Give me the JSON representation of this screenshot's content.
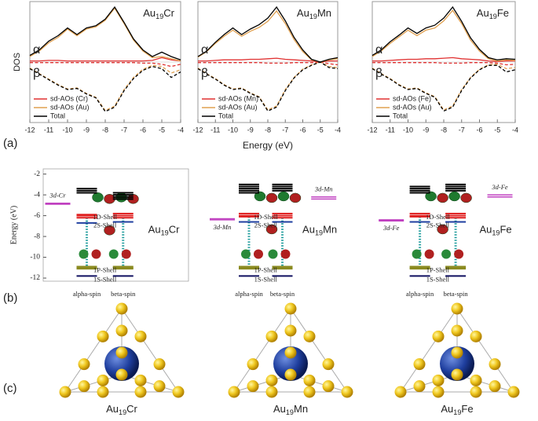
{
  "panel_labels": [
    "(a)",
    "(b)",
    "(c)"
  ],
  "chart_data": [
    {
      "type": "dos",
      "title": {
        "text": "Au",
        "subscript": "19",
        "suffix": "Cr"
      },
      "ylabel": "DOS",
      "alpha_label": "α",
      "beta_label": "β",
      "x": [
        -12,
        -11.5,
        -11,
        -10.5,
        -10,
        -9.5,
        -9,
        -8.5,
        -8,
        -7.5,
        -7,
        -6.5,
        -6,
        -5.5,
        -5,
        -4.5,
        -4
      ],
      "xlim": [
        -12,
        -4
      ],
      "xticks": [
        -12,
        -11,
        -10,
        -9,
        -8,
        -7,
        -6,
        -5,
        -4
      ],
      "ylim": [
        -1.1,
        1.1
      ],
      "legend": "lower left",
      "series": [
        {
          "name": "sd-AOs (Cr)",
          "color": "#e03030",
          "values": [
            0.02,
            0.02,
            0.03,
            0.03,
            0.02,
            0.02,
            0.02,
            0.02,
            0.02,
            0.02,
            0.02,
            0.02,
            0.02,
            0.03,
            0.08,
            0.04,
            0.02
          ],
          "beta": [
            -0.01,
            -0.01,
            -0.01,
            -0.01,
            -0.01,
            -0.01,
            -0.01,
            -0.01,
            -0.01,
            -0.01,
            -0.01,
            -0.01,
            -0.02,
            -0.02,
            -0.04,
            -0.08,
            -0.04
          ]
        },
        {
          "name": "sd-AOs (Au)",
          "color": "#e0a050",
          "values": [
            0.1,
            0.2,
            0.35,
            0.45,
            0.6,
            0.48,
            0.6,
            0.64,
            0.76,
            0.98,
            0.7,
            0.4,
            0.2,
            0.08,
            0.1,
            0.06,
            0.02
          ],
          "beta": [
            -0.11,
            -0.21,
            -0.31,
            -0.41,
            -0.49,
            -0.47,
            -0.57,
            -0.64,
            -0.88,
            -0.8,
            -0.5,
            -0.28,
            -0.13,
            -0.06,
            -0.08,
            -0.2,
            -0.14
          ]
        },
        {
          "name": "Total",
          "color": "#000000",
          "values": [
            0.12,
            0.22,
            0.38,
            0.48,
            0.62,
            0.5,
            0.62,
            0.66,
            0.78,
            1.0,
            0.72,
            0.42,
            0.22,
            0.1,
            0.18,
            0.1,
            0.04
          ],
          "beta": [
            -0.12,
            -0.22,
            -0.32,
            -0.42,
            -0.5,
            -0.48,
            -0.58,
            -0.65,
            -0.9,
            -0.82,
            -0.52,
            -0.3,
            -0.15,
            -0.08,
            -0.12,
            -0.28,
            -0.18
          ]
        }
      ]
    },
    {
      "type": "dos",
      "title": {
        "text": "Au",
        "subscript": "19",
        "suffix": "Mn"
      },
      "xlabel": "Energy (eV)",
      "alpha_label": "α",
      "beta_label": "β",
      "x": [
        -12,
        -11.5,
        -11,
        -10.5,
        -10,
        -9.5,
        -9,
        -8.5,
        -8,
        -7.5,
        -7,
        -6.5,
        -6,
        -5.5,
        -5,
        -4.5,
        -4
      ],
      "xlim": [
        -12,
        -4
      ],
      "xticks": [
        -12,
        -11,
        -10,
        -9,
        -8,
        -7,
        -6,
        -5,
        -4
      ],
      "ylim": [
        -1.1,
        1.1
      ],
      "legend": "lower left",
      "series": [
        {
          "name": "sd-AOs (Mn)",
          "color": "#e03030",
          "values": [
            0.02,
            0.02,
            0.03,
            0.04,
            0.04,
            0.04,
            0.05,
            0.05,
            0.06,
            0.07,
            0.05,
            0.04,
            0.03,
            0.02,
            0.0,
            0.02,
            0.02
          ],
          "beta": [
            -0.01,
            -0.01,
            -0.01,
            -0.01,
            -0.01,
            -0.01,
            -0.01,
            -0.01,
            -0.02,
            -0.02,
            -0.02,
            -0.01,
            -0.01,
            -0.01,
            -0.0,
            -0.03,
            -0.05
          ]
        },
        {
          "name": "sd-AOs (Au)",
          "color": "#e0a050",
          "values": [
            0.09,
            0.19,
            0.34,
            0.47,
            0.58,
            0.47,
            0.56,
            0.63,
            0.74,
            0.93,
            0.7,
            0.41,
            0.19,
            0.04,
            0.0,
            0.04,
            0.06
          ],
          "beta": [
            -0.11,
            -0.21,
            -0.3,
            -0.41,
            -0.49,
            -0.47,
            -0.56,
            -0.63,
            -0.87,
            -0.8,
            -0.5,
            -0.28,
            -0.13,
            -0.05,
            -0.0,
            -0.08,
            -0.1
          ]
        },
        {
          "name": "Total",
          "color": "#000000",
          "values": [
            0.1,
            0.2,
            0.36,
            0.5,
            0.62,
            0.5,
            0.6,
            0.68,
            0.8,
            1.0,
            0.75,
            0.45,
            0.22,
            0.05,
            0.0,
            0.05,
            0.08
          ],
          "beta": [
            -0.12,
            -0.22,
            -0.31,
            -0.42,
            -0.5,
            -0.48,
            -0.57,
            -0.64,
            -0.89,
            -0.82,
            -0.52,
            -0.29,
            -0.14,
            -0.06,
            -0.0,
            -0.1,
            -0.12
          ]
        }
      ]
    },
    {
      "type": "dos",
      "title": {
        "text": "Au",
        "subscript": "19",
        "suffix": "Fe"
      },
      "alpha_label": "α",
      "beta_label": "β",
      "x": [
        -12,
        -11.5,
        -11,
        -10.5,
        -10,
        -9.5,
        -9,
        -8.5,
        -8,
        -7.5,
        -7,
        -6.5,
        -6,
        -5.5,
        -5,
        -4.5,
        -4
      ],
      "xlim": [
        -12,
        -4
      ],
      "xticks": [
        -12,
        -11,
        -10,
        -9,
        -8,
        -7,
        -6,
        -5,
        -4
      ],
      "ylim": [
        -1.1,
        1.1
      ],
      "legend": "lower left",
      "series": [
        {
          "name": "sd-AOs (Fe)",
          "color": "#e03030",
          "values": [
            0.02,
            0.02,
            0.03,
            0.04,
            0.05,
            0.05,
            0.06,
            0.06,
            0.07,
            0.08,
            0.06,
            0.05,
            0.04,
            0.02,
            0.01,
            0.02,
            0.02
          ],
          "beta": [
            -0.01,
            -0.01,
            -0.01,
            -0.01,
            -0.01,
            -0.01,
            -0.01,
            -0.01,
            -0.02,
            -0.02,
            -0.02,
            -0.01,
            -0.01,
            -0.01,
            -0.02,
            -0.05,
            -0.04
          ]
        },
        {
          "name": "sd-AOs (Au)",
          "color": "#e0a050",
          "values": [
            0.1,
            0.2,
            0.34,
            0.46,
            0.58,
            0.48,
            0.58,
            0.62,
            0.75,
            0.94,
            0.7,
            0.4,
            0.2,
            0.06,
            0.02,
            0.04,
            0.03
          ],
          "beta": [
            -0.11,
            -0.21,
            -0.3,
            -0.41,
            -0.49,
            -0.47,
            -0.56,
            -0.63,
            -0.87,
            -0.8,
            -0.5,
            -0.28,
            -0.13,
            -0.05,
            -0.04,
            -0.12,
            -0.1
          ]
        },
        {
          "name": "Total",
          "color": "#000000",
          "values": [
            0.12,
            0.22,
            0.37,
            0.49,
            0.62,
            0.52,
            0.62,
            0.67,
            0.8,
            1.0,
            0.74,
            0.44,
            0.23,
            0.08,
            0.04,
            0.06,
            0.05
          ],
          "beta": [
            -0.12,
            -0.22,
            -0.31,
            -0.42,
            -0.5,
            -0.48,
            -0.57,
            -0.64,
            -0.89,
            -0.82,
            -0.52,
            -0.29,
            -0.14,
            -0.06,
            -0.06,
            -0.18,
            -0.14
          ]
        }
      ]
    },
    {
      "type": "levels",
      "title": {
        "text": "Au",
        "subscript": "19",
        "suffix": "Cr"
      },
      "ylabel": "Energy (eV)",
      "ylim": [
        -12.3,
        -1.5
      ],
      "yticks": [
        -2,
        -4,
        -6,
        -8,
        -10,
        -12
      ],
      "alpha_label": "alpha-spin",
      "beta_label": "beta-spin",
      "groups": [
        {
          "color": "#000000",
          "alpha": [
            -3.4,
            -3.6,
            -3.8
          ],
          "beta": [
            -3.8,
            -4.0,
            -4.2,
            -4.4
          ]
        },
        {
          "name": "1D-Shell",
          "color": "#e02020",
          "alpha": [
            -5.9,
            -6.0,
            -6.2
          ],
          "beta": [
            -5.8,
            -6.0,
            -6.2
          ]
        },
        {
          "name": "2S-Shell",
          "color": "#2040a0",
          "alpha": [
            -6.7
          ],
          "beta": [
            -6.6
          ]
        },
        {
          "name": "1P-Shell",
          "color": "#8a8a20",
          "alpha": [
            -10.9,
            -11.0,
            -11.1
          ],
          "beta": [
            -10.9,
            -11.0,
            -11.1
          ]
        },
        {
          "name": "1S-Shell",
          "color": "#101060",
          "alpha": [
            -11.8
          ],
          "beta": [
            -11.8
          ]
        }
      ],
      "d_alpha": {
        "name": "3d-Cr",
        "color": "#c040c0",
        "levels": [
          -4.8,
          -4.9
        ],
        "label_position": "above"
      }
    },
    {
      "type": "levels",
      "title": {
        "text": "Au",
        "subscript": "19",
        "suffix": "Mn"
      },
      "ylim": [
        -12.3,
        -1.5
      ],
      "alpha_label": "alpha-spin",
      "beta_label": "beta-spin",
      "groups": [
        {
          "color": "#000000",
          "alpha": [
            -3.0,
            -3.2,
            -3.4,
            -3.6,
            -3.8
          ],
          "beta": [
            -3.0,
            -3.2,
            -3.4,
            -3.6
          ]
        },
        {
          "name": "1D-Shell",
          "color": "#e02020",
          "alpha": [
            -5.8,
            -6.0,
            -6.1
          ],
          "beta": [
            -5.8,
            -6.0,
            -6.2
          ]
        },
        {
          "name": "2S-Shell",
          "color": "#2040a0",
          "alpha": [
            -6.6
          ],
          "beta": [
            -6.6
          ]
        },
        {
          "name": "1P-Shell",
          "color": "#8a8a20",
          "alpha": [
            -10.9,
            -11.0,
            -11.1
          ],
          "beta": [
            -10.9,
            -11.0,
            -11.1
          ]
        },
        {
          "name": "1S-Shell",
          "color": "#101060",
          "alpha": [
            -11.8
          ],
          "beta": [
            -11.8
          ]
        }
      ],
      "d_alpha": {
        "name": "3d-Mn",
        "color": "#c040c0",
        "levels": [
          -6.3,
          -6.4
        ],
        "label_position": "below"
      },
      "d_beta": {
        "name": "3d-Mn",
        "color": "#c040c0",
        "levels": [
          -4.2,
          -4.4
        ],
        "label_position": "above"
      }
    },
    {
      "type": "levels",
      "title": {
        "text": "Au",
        "subscript": "19",
        "suffix": "Fe"
      },
      "ylim": [
        -12.3,
        -1.5
      ],
      "alpha_label": "alpha-spin",
      "beta_label": "beta-spin",
      "groups": [
        {
          "color": "#000000",
          "alpha": [
            -3.2,
            -3.4,
            -3.6,
            -3.8
          ],
          "beta": [
            -3.0,
            -3.2,
            -3.4,
            -3.6
          ]
        },
        {
          "name": "1D-Shell",
          "color": "#e02020",
          "alpha": [
            -5.8,
            -6.0,
            -6.1
          ],
          "beta": [
            -5.8,
            -6.0,
            -6.2
          ]
        },
        {
          "name": "2S-Shell",
          "color": "#2040a0",
          "alpha": [
            -6.6
          ],
          "beta": [
            -6.6
          ]
        },
        {
          "name": "1P-Shell",
          "color": "#8a8a20",
          "alpha": [
            -10.9,
            -11.0,
            -11.1
          ],
          "beta": [
            -10.9,
            -11.0,
            -11.1
          ]
        },
        {
          "name": "1S-Shell",
          "color": "#101060",
          "alpha": [
            -11.8
          ],
          "beta": [
            -11.8
          ]
        }
      ],
      "d_alpha": {
        "name": "3d-Fe",
        "color": "#c040c0",
        "levels": [
          -6.4,
          -6.5
        ],
        "label_position": "below"
      },
      "d_beta": {
        "name": "3d-Fe",
        "color": "#c040c0",
        "levels": [
          -4.0,
          -4.2
        ],
        "label_position": "above"
      }
    }
  ],
  "clusters": [
    {
      "text": "Au",
      "subscript": "19",
      "suffix": "Cr"
    },
    {
      "text": "Au",
      "subscript": "19",
      "suffix": "Mn"
    },
    {
      "text": "Au",
      "subscript": "19",
      "suffix": "Fe"
    }
  ]
}
